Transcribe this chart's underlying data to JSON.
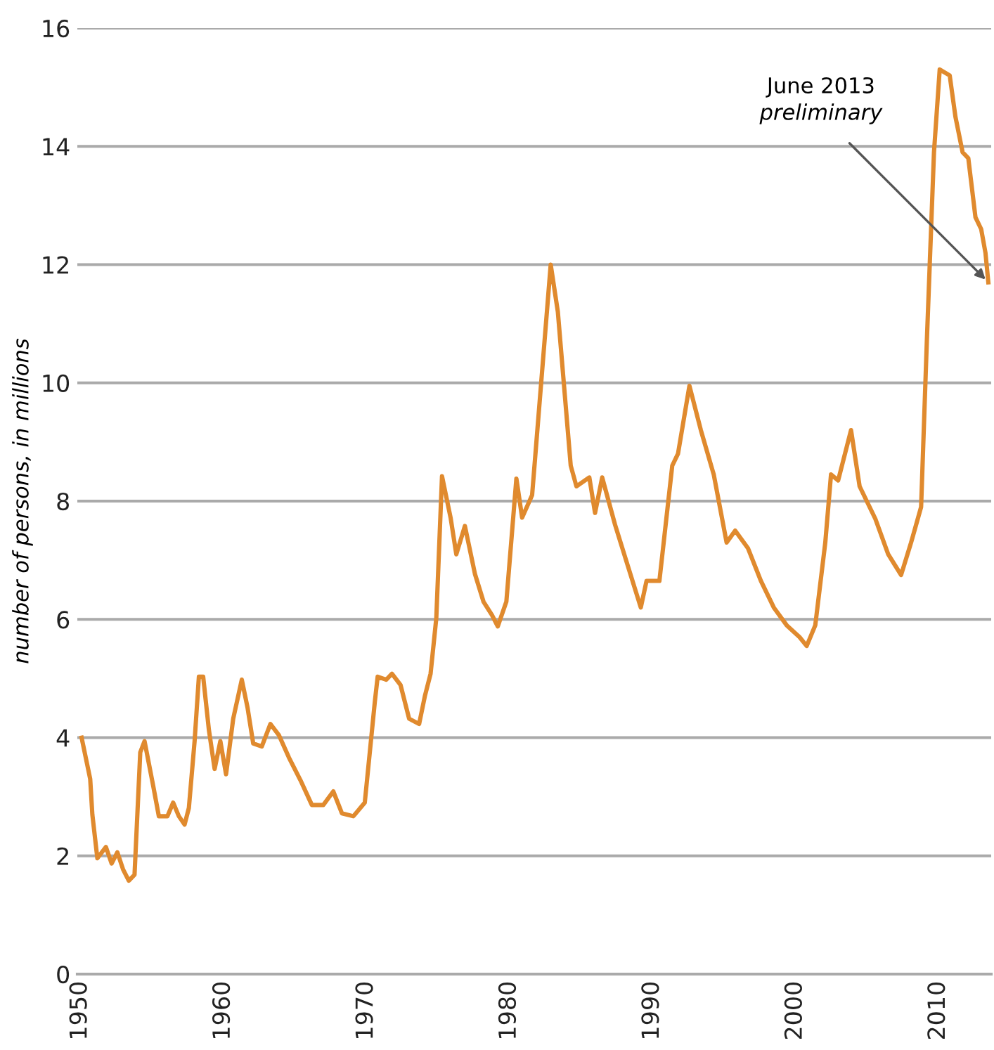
{
  "chart_data": {
    "type": "line",
    "ylabel": "number of persons, in millions",
    "x": [
      1950.1,
      1950.7,
      1950.85,
      1951.2,
      1951.8,
      1952.2,
      1952.6,
      1953.0,
      1953.4,
      1953.8,
      1954.2,
      1954.5,
      1955.1,
      1955.5,
      1956.1,
      1956.5,
      1956.9,
      1957.3,
      1957.6,
      1958.0,
      1958.3,
      1958.6,
      1959.0,
      1959.4,
      1959.8,
      1960.2,
      1960.7,
      1961.3,
      1961.7,
      1962.1,
      1962.7,
      1963.3,
      1963.9,
      1964.6,
      1965.4,
      1966.2,
      1967.0,
      1967.7,
      1968.3,
      1969.1,
      1969.9,
      1970.6,
      1970.8,
      1971.4,
      1971.8,
      1972.4,
      1973.0,
      1973.7,
      1974.1,
      1974.5,
      1974.9,
      1975.3,
      1975.9,
      1976.3,
      1976.9,
      1977.6,
      1978.2,
      1978.8,
      1979.2,
      1979.8,
      1980.5,
      1980.9,
      1981.6,
      1982.9,
      1983.4,
      1984.3,
      1984.7,
      1985.6,
      1986.0,
      1986.5,
      1987.4,
      1988.3,
      1989.2,
      1989.6,
      1990.5,
      1991.4,
      1991.8,
      1992.6,
      1993.4,
      1994.3,
      1995.2,
      1995.8,
      1996.7,
      1997.6,
      1998.5,
      1999.4,
      2000.3,
      2000.8,
      2001.4,
      2002.1,
      2002.5,
      2003.0,
      2003.9,
      2004.5,
      2005.6,
      2006.5,
      2007.4,
      2008.1,
      2008.8,
      2009.2,
      2009.7,
      2010.1,
      2010.8,
      2011.2,
      2011.7,
      2012.1,
      2012.6,
      2013.0,
      2013.3,
      2013.5
    ],
    "series": [
      {
        "color": "#e08a2e",
        "values": [
          4.0,
          3.3,
          2.7,
          1.96,
          2.15,
          1.87,
          2.06,
          1.77,
          1.58,
          1.68,
          3.75,
          3.94,
          3.19,
          2.67,
          2.67,
          2.9,
          2.67,
          2.53,
          2.81,
          3.94,
          5.03,
          5.03,
          4.13,
          3.47,
          3.94,
          3.38,
          4.32,
          4.98,
          4.51,
          3.9,
          3.85,
          4.23,
          4.04,
          3.66,
          3.28,
          2.86,
          2.86,
          3.09,
          2.72,
          2.67,
          2.9,
          4.6,
          5.03,
          4.98,
          5.08,
          4.89,
          4.32,
          4.23,
          4.7,
          5.08,
          6.02,
          8.42,
          7.72,
          7.1,
          7.58,
          6.77,
          6.3,
          6.07,
          5.88,
          6.3,
          8.38,
          7.72,
          8.1,
          12.0,
          11.2,
          8.6,
          8.25,
          8.4,
          7.8,
          8.4,
          7.6,
          6.9,
          6.2,
          6.65,
          6.65,
          8.6,
          8.8,
          9.95,
          9.2,
          8.45,
          7.3,
          7.5,
          7.2,
          6.65,
          6.2,
          5.9,
          5.7,
          5.55,
          5.9,
          7.3,
          8.45,
          8.35,
          9.2,
          8.25,
          7.7,
          7.1,
          6.75,
          7.3,
          7.9,
          10.7,
          13.9,
          15.3,
          15.2,
          14.5,
          13.9,
          13.8,
          12.8,
          12.6,
          12.2,
          11.7
        ]
      }
    ],
    "xlim": [
      1949.8,
      2013.7
    ],
    "xticks": [
      1950,
      1960,
      1970,
      1980,
      1990,
      2000,
      2010
    ],
    "ylim": [
      0,
      16
    ],
    "yticks": [
      0,
      2,
      4,
      6,
      8,
      10,
      12,
      14,
      16
    ],
    "grid": "y",
    "marker": "none",
    "line_style": "solid",
    "annotations": [
      {
        "text": "June 2013\npreliminary",
        "x": 2013.5,
        "y": 11.7
      }
    ]
  }
}
